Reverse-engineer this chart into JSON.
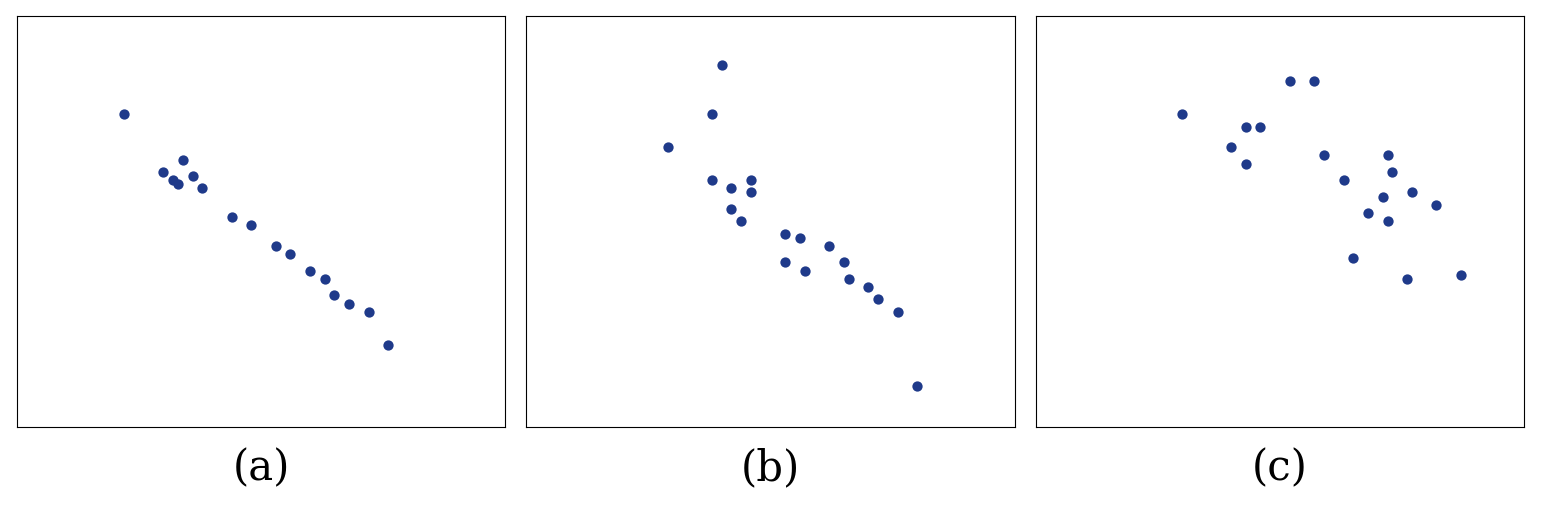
{
  "dot_color": "#1f3a8a",
  "dot_size": 55,
  "background_color": "#ffffff",
  "label_fontsize": 30,
  "labels": [
    "(a)",
    "(b)",
    "(c)"
  ],
  "plot_a": {
    "x": [
      0.22,
      0.34,
      0.3,
      0.32,
      0.36,
      0.33,
      0.38,
      0.44,
      0.48,
      0.53,
      0.56,
      0.6,
      0.63,
      0.65,
      0.68,
      0.72,
      0.76
    ],
    "y": [
      0.76,
      0.65,
      0.62,
      0.6,
      0.61,
      0.59,
      0.58,
      0.51,
      0.49,
      0.44,
      0.42,
      0.38,
      0.36,
      0.32,
      0.3,
      0.28,
      0.2
    ]
  },
  "plot_b": {
    "x": [
      0.4,
      0.38,
      0.29,
      0.38,
      0.42,
      0.46,
      0.46,
      0.42,
      0.44,
      0.53,
      0.56,
      0.62,
      0.53,
      0.57,
      0.65,
      0.66,
      0.7,
      0.72,
      0.76,
      0.8
    ],
    "y": [
      0.88,
      0.76,
      0.68,
      0.6,
      0.58,
      0.6,
      0.57,
      0.53,
      0.5,
      0.47,
      0.46,
      0.44,
      0.4,
      0.38,
      0.4,
      0.36,
      0.34,
      0.31,
      0.28,
      0.1
    ]
  },
  "plot_c": {
    "x": [
      0.52,
      0.57,
      0.3,
      0.43,
      0.46,
      0.4,
      0.43,
      0.59,
      0.72,
      0.63,
      0.73,
      0.71,
      0.77,
      0.82,
      0.68,
      0.72,
      0.65,
      0.76,
      0.87
    ],
    "y": [
      0.84,
      0.84,
      0.76,
      0.73,
      0.73,
      0.68,
      0.64,
      0.66,
      0.66,
      0.6,
      0.62,
      0.56,
      0.57,
      0.54,
      0.52,
      0.5,
      0.41,
      0.36,
      0.37
    ]
  }
}
